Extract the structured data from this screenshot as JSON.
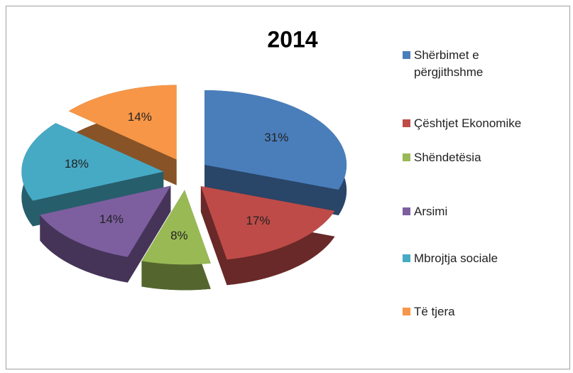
{
  "chart_data": {
    "type": "pie",
    "title": "2014",
    "categories": [
      "Shërbimet e përgjithshme",
      "Çështjet Ekonomike",
      "Shëndetësia",
      "Arsimi",
      "Mbrojtja sociale",
      "Të tjera"
    ],
    "values": [
      31,
      17,
      8,
      14,
      18,
      14
    ],
    "value_labels": [
      "31%",
      "17%",
      "8%",
      "14%",
      "18%",
      "14%"
    ],
    "colors": [
      "#4a7ebb",
      "#be4b48",
      "#98b954",
      "#7d5fa0",
      "#46aac5",
      "#f79646"
    ],
    "legend": "right"
  }
}
